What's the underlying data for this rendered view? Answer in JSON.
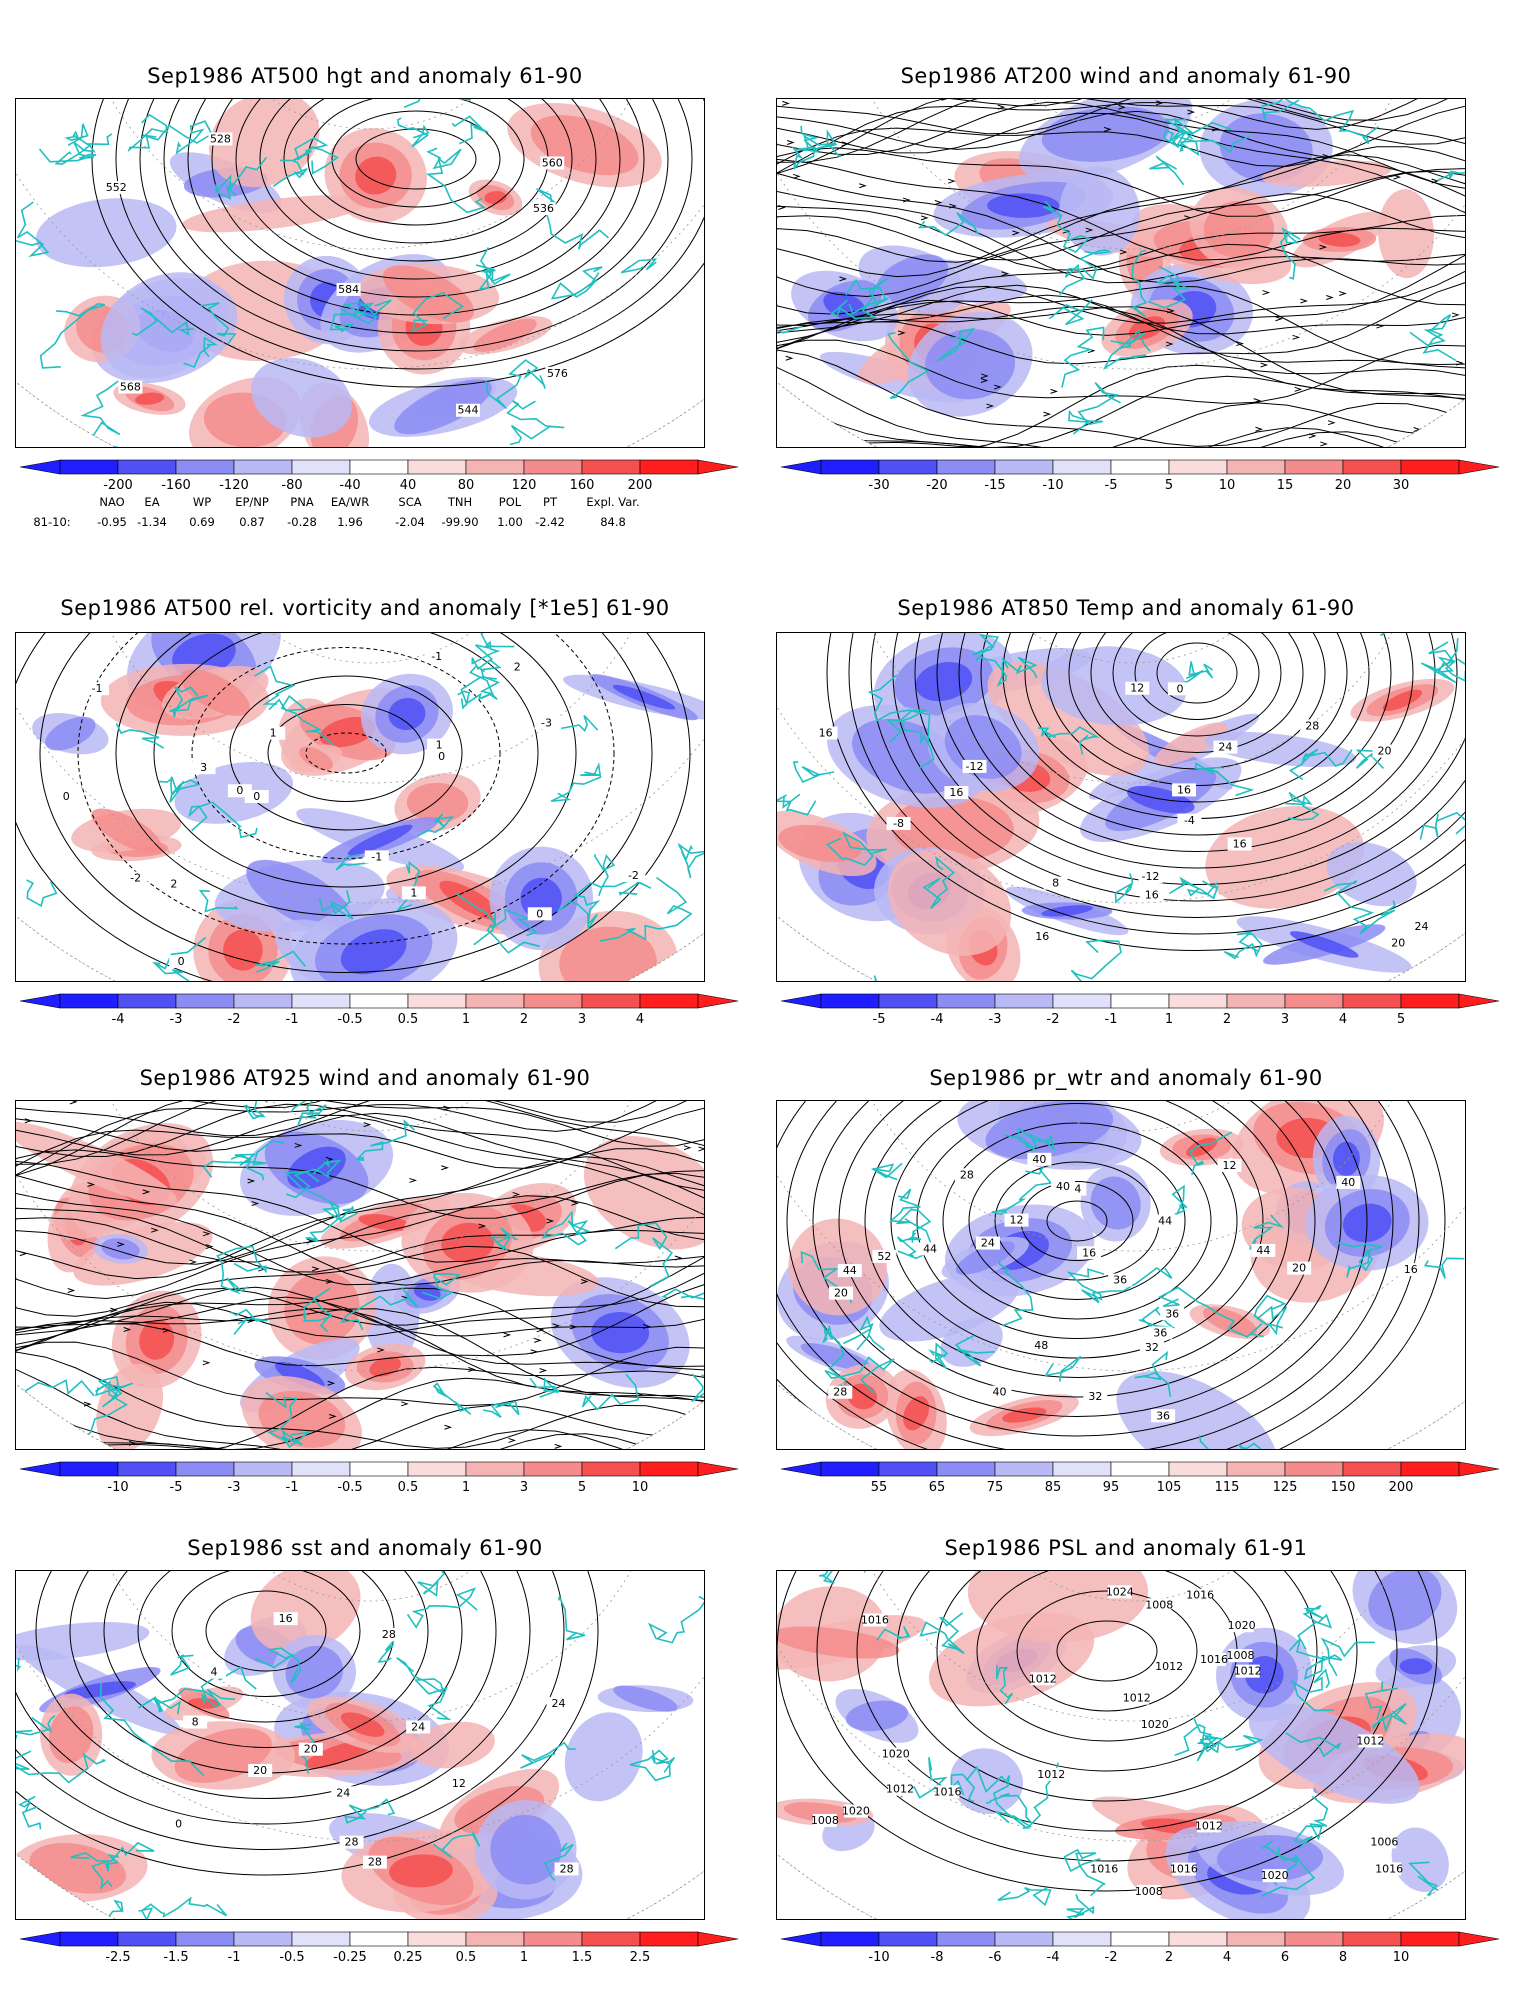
{
  "panels": [
    {
      "id": "p1",
      "title": "Sep1986 AT500 hgt and anomaly 61-90",
      "colorbar": [
        "-200",
        "-160",
        "-120",
        "-80",
        "-40",
        "40",
        "80",
        "120",
        "160",
        "200"
      ],
      "contour_labels": [
        "528",
        "536",
        "544",
        "552",
        "560",
        "568",
        "576",
        "584"
      ],
      "style": "hgt"
    },
    {
      "id": "p2",
      "title": "Sep1986 AT200 wind and anomaly 61-90",
      "colorbar": [
        "-30",
        "-20",
        "-15",
        "-10",
        "-5",
        "5",
        "10",
        "15",
        "20",
        "30"
      ],
      "contour_labels": [],
      "style": "stream"
    },
    {
      "id": "p3",
      "title": "Sep1986 AT500 rel. vorticity and anomaly [*1e5] 61-90",
      "colorbar": [
        "-4",
        "-3",
        "-2",
        "-1",
        "-0.5",
        "0.5",
        "1",
        "2",
        "3",
        "4"
      ],
      "contour_labels": [
        "0",
        "0",
        "0",
        "0",
        "0",
        "0",
        "-1",
        "-1",
        "-1",
        "1",
        "1",
        "1",
        "2",
        "2",
        "-2",
        "-2",
        "3",
        "-3"
      ],
      "style": "vort"
    },
    {
      "id": "p4",
      "title": "Sep1986 AT850 Temp and anomaly 61-90",
      "colorbar": [
        "-5",
        "-4",
        "-3",
        "-2",
        "-1",
        "1",
        "2",
        "3",
        "4",
        "5"
      ],
      "contour_labels": [
        "-12",
        "-8",
        "-4",
        "-12",
        "0",
        "8",
        "12",
        "16",
        "20",
        "24",
        "28",
        "16",
        "16",
        "16",
        "16",
        "20",
        "24",
        "16"
      ],
      "style": "temp"
    },
    {
      "id": "p5",
      "title": "Sep1986 AT925 wind and anomaly 61-90",
      "colorbar": [
        "-10",
        "-5",
        "-3",
        "-1",
        "-0.5",
        "0.5",
        "1",
        "3",
        "5",
        "10"
      ],
      "contour_labels": [],
      "style": "stream"
    },
    {
      "id": "p6",
      "title": "Sep1986 pr_wtr and anomaly 61-90",
      "colorbar": [
        "55",
        "65",
        "75",
        "85",
        "95",
        "105",
        "115",
        "125",
        "150",
        "200"
      ],
      "contour_labels": [
        "44",
        "48",
        "36",
        "40",
        "52",
        "44",
        "12",
        "16",
        "20",
        "24",
        "28",
        "32",
        "36",
        "40",
        "44",
        "36",
        "32",
        "28",
        "24",
        "20",
        "16",
        "12",
        "40",
        "44",
        "36",
        "40"
      ],
      "style": "prwtr"
    },
    {
      "id": "p7",
      "title": "Sep1986 sst and anomaly 61-90",
      "colorbar": [
        "-2.5",
        "-1.5",
        "-1",
        "-0.5",
        "-0.25",
        "0.25",
        "0.5",
        "1",
        "1.5",
        "2.5"
      ],
      "contour_labels": [
        "24",
        "28",
        "28",
        "20",
        "16",
        "12",
        "8",
        "4",
        "0",
        "24",
        "24",
        "28",
        "28",
        "20"
      ],
      "style": "sst"
    },
    {
      "id": "p8",
      "title": "Sep1986 PSL and anomaly 61-91",
      "colorbar": [
        "-10",
        "-8",
        "-6",
        "-4",
        "-2",
        "2",
        "4",
        "6",
        "8",
        "10"
      ],
      "contour_labels": [
        "1012",
        "1016",
        "1012",
        "1016",
        "1012",
        "1020",
        "1020",
        "1008",
        "1016",
        "1012",
        "1020",
        "1024",
        "1016",
        "1012",
        "1008",
        "1020",
        "1016",
        "1008",
        "1012",
        "1012",
        "1012",
        "1016",
        "1008",
        "1020",
        "1006",
        "1016"
      ],
      "style": "psl"
    }
  ],
  "teleconnection": {
    "headers": [
      "NAO",
      "EA",
      "WP",
      "EP/NP",
      "PNA",
      "EA/WR",
      "SCA",
      "TNH",
      "POL",
      "PT",
      "Expl. Var."
    ],
    "row_label": "81-10:",
    "values": [
      "-0.95",
      "-1.34",
      "0.69",
      "0.87",
      "-0.28",
      "1.96",
      "-2.04",
      "-99.90",
      "1.00",
      "-2.42",
      "84.8"
    ]
  },
  "colors": {
    "blue": [
      "#1e1eff",
      "#5050f5",
      "#8c8cf5",
      "#b9b9f5",
      "#e1e1fa"
    ],
    "red": [
      "#fadcdc",
      "#f5b4b4",
      "#f58c8c",
      "#f55050",
      "#ff1e1e"
    ],
    "coast": "#20c0c0"
  }
}
